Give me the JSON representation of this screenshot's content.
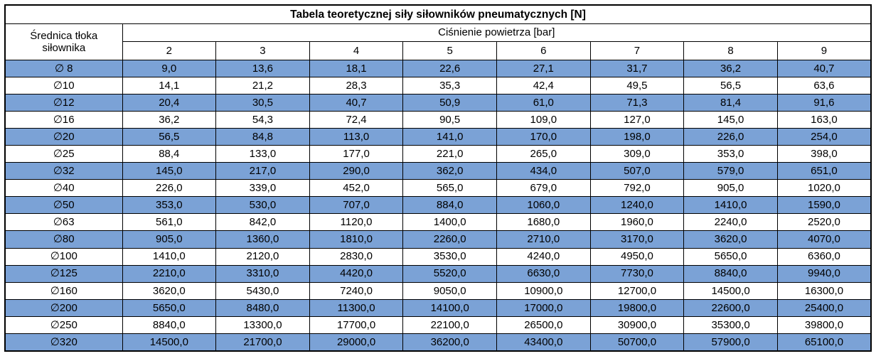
{
  "title": "Tabela teoretycznej siły siłowników pneumatycznych [N]",
  "header": {
    "row_label": "Średnica tłoka siłownika",
    "col_group_label": "Ciśnienie powietrza [bar]",
    "pressures": [
      "2",
      "3",
      "4",
      "5",
      "6",
      "7",
      "8",
      "9"
    ]
  },
  "colors": {
    "row_highlight": "#7ba2d6",
    "grid_border": "#000000",
    "background": "#ffffff",
    "text": "#000000"
  },
  "rows": [
    {
      "diameter": "∅ 8",
      "highlight": true,
      "values": [
        "9,0",
        "13,6",
        "18,1",
        "22,6",
        "27,1",
        "31,7",
        "36,2",
        "40,7"
      ]
    },
    {
      "diameter": "∅10",
      "highlight": false,
      "values": [
        "14,1",
        "21,2",
        "28,3",
        "35,3",
        "42,4",
        "49,5",
        "56,5",
        "63,6"
      ]
    },
    {
      "diameter": "∅12",
      "highlight": true,
      "values": [
        "20,4",
        "30,5",
        "40,7",
        "50,9",
        "61,0",
        "71,3",
        "81,4",
        "91,6"
      ]
    },
    {
      "diameter": "∅16",
      "highlight": false,
      "values": [
        "36,2",
        "54,3",
        "72,4",
        "90,5",
        "109,0",
        "127,0",
        "145,0",
        "163,0"
      ]
    },
    {
      "diameter": "∅20",
      "highlight": true,
      "values": [
        "56,5",
        "84,8",
        "113,0",
        "141,0",
        "170,0",
        "198,0",
        "226,0",
        "254,0"
      ]
    },
    {
      "diameter": "∅25",
      "highlight": false,
      "values": [
        "88,4",
        "133,0",
        "177,0",
        "221,0",
        "265,0",
        "309,0",
        "353,0",
        "398,0"
      ]
    },
    {
      "diameter": "∅32",
      "highlight": true,
      "values": [
        "145,0",
        "217,0",
        "290,0",
        "362,0",
        "434,0",
        "507,0",
        "579,0",
        "651,0"
      ]
    },
    {
      "diameter": "∅40",
      "highlight": false,
      "values": [
        "226,0",
        "339,0",
        "452,0",
        "565,0",
        "679,0",
        "792,0",
        "905,0",
        "1020,0"
      ]
    },
    {
      "diameter": "∅50",
      "highlight": true,
      "values": [
        "353,0",
        "530,0",
        "707,0",
        "884,0",
        "1060,0",
        "1240,0",
        "1410,0",
        "1590,0"
      ]
    },
    {
      "diameter": "∅63",
      "highlight": false,
      "values": [
        "561,0",
        "842,0",
        "1120,0",
        "1400,0",
        "1680,0",
        "1960,0",
        "2240,0",
        "2520,0"
      ]
    },
    {
      "diameter": "∅80",
      "highlight": true,
      "values": [
        "905,0",
        "1360,0",
        "1810,0",
        "2260,0",
        "2710,0",
        "3170,0",
        "3620,0",
        "4070,0"
      ]
    },
    {
      "diameter": "∅100",
      "highlight": false,
      "values": [
        "1410,0",
        "2120,0",
        "2830,0",
        "3530,0",
        "4240,0",
        "4950,0",
        "5650,0",
        "6360,0"
      ]
    },
    {
      "diameter": "∅125",
      "highlight": true,
      "values": [
        "2210,0",
        "3310,0",
        "4420,0",
        "5520,0",
        "6630,0",
        "7730,0",
        "8840,0",
        "9940,0"
      ]
    },
    {
      "diameter": "∅160",
      "highlight": false,
      "values": [
        "3620,0",
        "5430,0",
        "7240,0",
        "9050,0",
        "10900,0",
        "12700,0",
        "14500,0",
        "16300,0"
      ]
    },
    {
      "diameter": "∅200",
      "highlight": true,
      "values": [
        "5650,0",
        "8480,0",
        "11300,0",
        "14100,0",
        "17000,0",
        "19800,0",
        "22600,0",
        "25400,0"
      ]
    },
    {
      "diameter": "∅250",
      "highlight": false,
      "values": [
        "8840,0",
        "13300,0",
        "17700,0",
        "22100,0",
        "26500,0",
        "30900,0",
        "35300,0",
        "39800,0"
      ]
    },
    {
      "diameter": "∅320",
      "highlight": true,
      "values": [
        "14500,0",
        "21700,0",
        "29000,0",
        "36200,0",
        "43400,0",
        "50700,0",
        "57900,0",
        "65100,0"
      ]
    }
  ]
}
